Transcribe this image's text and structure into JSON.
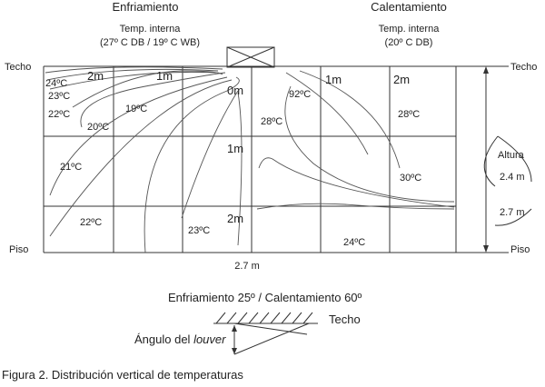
{
  "header": {
    "cooling": {
      "title": "Enfriamiento",
      "line1": "Temp. interna",
      "line2": "(27º C DB / 19º C WB)"
    },
    "heating": {
      "title": "Calentamiento",
      "line1": "Temp. interna",
      "line2": "(20º C DB)"
    }
  },
  "labels": {
    "ceiling_left": "Techo",
    "ceiling_right": "Techo",
    "floor_left": "Piso",
    "floor_right": "Piso"
  },
  "distances_top": [
    "2m",
    "1m",
    "0m",
    "1m",
    "2m"
  ],
  "distances_down": [
    "1m",
    "2m"
  ],
  "cooling_temps": [
    "24ºC",
    "23ºC",
    "22ºC",
    "19ºC",
    "20ºC",
    "21ºC",
    "22ºC",
    "23ºC"
  ],
  "heating_temps": [
    "92ºC",
    "28ºC",
    "28ºC",
    "30ºC",
    "24ºC"
  ],
  "height": {
    "title": "Altura",
    "values": [
      "2.4 m",
      "2.7 m"
    ]
  },
  "width": "2.7 m",
  "louver": {
    "title": "Enfriamiento 25º / Calentamiento 60º",
    "ceiling": "Techo",
    "angle_label": "Ángulo del ",
    "angle_label_italic": "louver"
  },
  "caption": "Figura 2. Distribución vertical de temperaturas"
}
